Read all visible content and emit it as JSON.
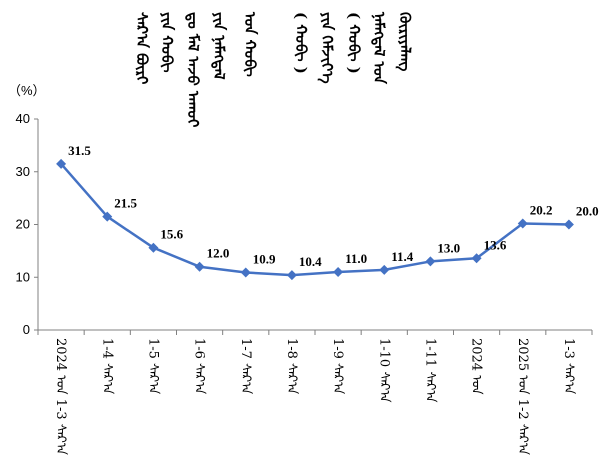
{
  "chart_data": {
    "type": "line",
    "title_lines": [
      "ᠰᠠᠷ᠎ᠠ ᠪᠦᠷᠢ",
      "ᠶᠢᠨ ᠬᠤᠪᠢ",
      "ᠳᠤ ᠮᠠᠯ ᠠᠵᠤ ᠠᠬᠤᠢ",
      "ᠶᠢᠨ ᠨᠡᠮᠡᠭᠳᠡᠯ",
      "ᠤᠨ ᠬᠤᠪᠢ",
      "( ᠬᠤᠪᠢ )",
      "ᠶᠢᠨ ᠬᠡᠮᠵᠢᠶ᠎ᠡ",
      "( ᠬᠤᠪᠢ )",
      "ᠨᠡᠮᠡᠭᠳᠡᠯ ᠤᠨ",
      "ᠬᠦᠷᠢᠶᠡᠯᠡᠩ"
    ],
    "unit_label": "（%）",
    "ylim": [
      0,
      40
    ],
    "yticks": [
      0,
      10,
      20,
      30,
      40
    ],
    "grid": false,
    "categories": [
      "2024 ᠤᠨ 1-3 ᠰᠠᠷ᠎ᠠ",
      "1-4 ᠰᠠᠷ᠎ᠠ",
      "1-5 ᠰᠠᠷ᠎ᠠ",
      "1-6 ᠰᠠᠷ᠎ᠠ",
      "1-7 ᠰᠠᠷ᠎ᠠ",
      "1-8 ᠰᠠᠷ᠎ᠠ",
      "1-9 ᠰᠠᠷ᠎ᠠ",
      "1-10 ᠰᠠᠷ᠎ᠠ",
      "1-11 ᠰᠠᠷ᠎ᠠ",
      "2024 ᠤᠨ",
      "2025 ᠤᠨ 1-2 ᠰᠠᠷ᠎ᠠ",
      "1-3 ᠰᠠᠷ᠎ᠠ"
    ],
    "series": [
      {
        "values": [
          31.5,
          21.5,
          15.6,
          12.0,
          10.9,
          10.4,
          11.0,
          11.4,
          13.0,
          13.6,
          20.2,
          20.0
        ],
        "labels": [
          "31.5",
          "21.5",
          "15.6",
          "12.0",
          "10.9",
          "10.4",
          "11.0",
          "11.4",
          "13.0",
          "13.6",
          "20.2",
          "20.0"
        ]
      }
    ],
    "colors": {
      "line": "#4472C4",
      "marker": "#4472C4",
      "axis": "#808080"
    }
  }
}
